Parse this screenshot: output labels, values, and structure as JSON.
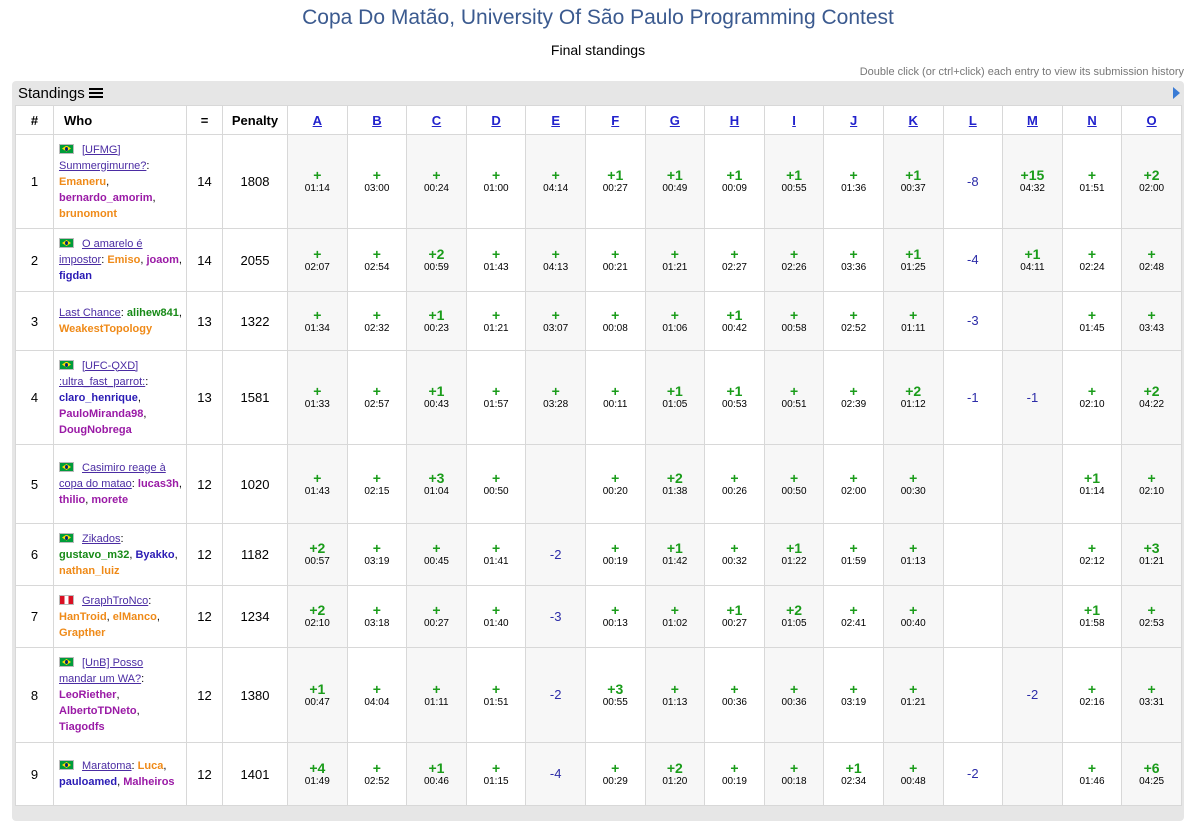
{
  "header": {
    "title": "Copa Do Matão, University Of São Paulo Programming Contest",
    "subtitle": "Final standings",
    "hint": "Double click (or ctrl+click) each entry to view its submission history"
  },
  "panel": {
    "title": "Standings"
  },
  "columns": {
    "rank": "#",
    "who": "Who",
    "solved": "=",
    "penalty": "Penalty"
  },
  "problems": [
    "A",
    "B",
    "C",
    "D",
    "E",
    "F",
    "G",
    "H",
    "I",
    "J",
    "K",
    "L",
    "M",
    "N",
    "O"
  ],
  "colors": {
    "accepted": "#1a9c1a",
    "rejected": "#2c2ca8",
    "title": "#3b5a8f",
    "team_link": "#4b2ca3"
  },
  "rows": [
    {
      "rank": "1",
      "flag": "br",
      "team": "[UFMG] Summergimurne?",
      "members": [
        {
          "name": "Emaneru",
          "color": "orange"
        },
        {
          "name": "bernardo_amorim",
          "color": "purple"
        },
        {
          "name": "brunomont",
          "color": "orange"
        }
      ],
      "solved": "14",
      "penalty": "1808",
      "cells": [
        {
          "r": "+",
          "t": "01:14"
        },
        {
          "r": "+",
          "t": "03:00"
        },
        {
          "r": "+",
          "t": "00:24"
        },
        {
          "r": "+",
          "t": "01:00"
        },
        {
          "r": "+",
          "t": "04:14"
        },
        {
          "r": "+1",
          "t": "00:27"
        },
        {
          "r": "+1",
          "t": "00:49"
        },
        {
          "r": "+1",
          "t": "00:09"
        },
        {
          "r": "+1",
          "t": "00:55"
        },
        {
          "r": "+",
          "t": "01:36"
        },
        {
          "r": "+1",
          "t": "00:37"
        },
        {
          "r": "-8",
          "t": ""
        },
        {
          "r": "+15",
          "t": "04:32"
        },
        {
          "r": "+",
          "t": "01:51"
        },
        {
          "r": "+2",
          "t": "02:00"
        }
      ]
    },
    {
      "rank": "2",
      "flag": "br",
      "team": "O amarelo é impostor",
      "members": [
        {
          "name": "Emiso",
          "color": "orange"
        },
        {
          "name": "joaom",
          "color": "purple"
        },
        {
          "name": "figdan",
          "color": "blue"
        }
      ],
      "solved": "14",
      "penalty": "2055",
      "cells": [
        {
          "r": "+",
          "t": "02:07"
        },
        {
          "r": "+",
          "t": "02:54"
        },
        {
          "r": "+2",
          "t": "00:59"
        },
        {
          "r": "+",
          "t": "01:43"
        },
        {
          "r": "+",
          "t": "04:13"
        },
        {
          "r": "+",
          "t": "00:21"
        },
        {
          "r": "+",
          "t": "01:21"
        },
        {
          "r": "+",
          "t": "02:27"
        },
        {
          "r": "+",
          "t": "02:26"
        },
        {
          "r": "+",
          "t": "03:36"
        },
        {
          "r": "+1",
          "t": "01:25"
        },
        {
          "r": "-4",
          "t": ""
        },
        {
          "r": "+1",
          "t": "04:11"
        },
        {
          "r": "+",
          "t": "02:24"
        },
        {
          "r": "+",
          "t": "02:48"
        }
      ]
    },
    {
      "rank": "3",
      "flag": "",
      "team": "Last Chance",
      "members": [
        {
          "name": "alihew841",
          "color": "green"
        },
        {
          "name": "WeakestTopology",
          "color": "orange"
        }
      ],
      "solved": "13",
      "penalty": "1322",
      "cells": [
        {
          "r": "+",
          "t": "01:34"
        },
        {
          "r": "+",
          "t": "02:32"
        },
        {
          "r": "+1",
          "t": "00:23"
        },
        {
          "r": "+",
          "t": "01:21"
        },
        {
          "r": "+",
          "t": "03:07"
        },
        {
          "r": "+",
          "t": "00:08"
        },
        {
          "r": "+",
          "t": "01:06"
        },
        {
          "r": "+1",
          "t": "00:42"
        },
        {
          "r": "+",
          "t": "00:58"
        },
        {
          "r": "+",
          "t": "02:52"
        },
        {
          "r": "+",
          "t": "01:11"
        },
        {
          "r": "-3",
          "t": ""
        },
        {
          "r": "",
          "t": ""
        },
        {
          "r": "+",
          "t": "01:45"
        },
        {
          "r": "+",
          "t": "03:43"
        }
      ]
    },
    {
      "rank": "4",
      "flag": "br",
      "team": "[UFC-QXD] :ultra_fast_parrot:",
      "members": [
        {
          "name": "claro_henrique",
          "color": "blue"
        },
        {
          "name": "PauloMiranda98",
          "color": "purple"
        },
        {
          "name": "DougNobrega",
          "color": "purple"
        }
      ],
      "solved": "13",
      "penalty": "1581",
      "cells": [
        {
          "r": "+",
          "t": "01:33"
        },
        {
          "r": "+",
          "t": "02:57"
        },
        {
          "r": "+1",
          "t": "00:43"
        },
        {
          "r": "+",
          "t": "01:57"
        },
        {
          "r": "+",
          "t": "03:28"
        },
        {
          "r": "+",
          "t": "00:11"
        },
        {
          "r": "+1",
          "t": "01:05"
        },
        {
          "r": "+1",
          "t": "00:53"
        },
        {
          "r": "+",
          "t": "00:51"
        },
        {
          "r": "+",
          "t": "02:39"
        },
        {
          "r": "+2",
          "t": "01:12"
        },
        {
          "r": "-1",
          "t": ""
        },
        {
          "r": "-1",
          "t": ""
        },
        {
          "r": "+",
          "t": "02:10"
        },
        {
          "r": "+2",
          "t": "04:22"
        }
      ]
    },
    {
      "rank": "5",
      "flag": "br",
      "team": "Casimiro reage à copa do matao",
      "members": [
        {
          "name": "lucas3h",
          "color": "purple"
        },
        {
          "name": "thilio",
          "color": "purple"
        },
        {
          "name": "morete",
          "color": "purple"
        }
      ],
      "solved": "12",
      "penalty": "1020",
      "cells": [
        {
          "r": "+",
          "t": "01:43"
        },
        {
          "r": "+",
          "t": "02:15"
        },
        {
          "r": "+3",
          "t": "01:04"
        },
        {
          "r": "+",
          "t": "00:50"
        },
        {
          "r": "",
          "t": ""
        },
        {
          "r": "+",
          "t": "00:20"
        },
        {
          "r": "+2",
          "t": "01:38"
        },
        {
          "r": "+",
          "t": "00:26"
        },
        {
          "r": "+",
          "t": "00:50"
        },
        {
          "r": "+",
          "t": "02:00"
        },
        {
          "r": "+",
          "t": "00:30"
        },
        {
          "r": "",
          "t": ""
        },
        {
          "r": "",
          "t": ""
        },
        {
          "r": "+1",
          "t": "01:14"
        },
        {
          "r": "+",
          "t": "02:10"
        }
      ]
    },
    {
      "rank": "6",
      "flag": "br",
      "team": "Zikados",
      "members": [
        {
          "name": "gustavo_m32",
          "color": "green"
        },
        {
          "name": "Byakko",
          "color": "blue"
        },
        {
          "name": "nathan_luiz",
          "color": "orange"
        }
      ],
      "solved": "12",
      "penalty": "1182",
      "cells": [
        {
          "r": "+2",
          "t": "00:57"
        },
        {
          "r": "+",
          "t": "03:19"
        },
        {
          "r": "+",
          "t": "00:45"
        },
        {
          "r": "+",
          "t": "01:41"
        },
        {
          "r": "-2",
          "t": ""
        },
        {
          "r": "+",
          "t": "00:19"
        },
        {
          "r": "+1",
          "t": "01:42"
        },
        {
          "r": "+",
          "t": "00:32"
        },
        {
          "r": "+1",
          "t": "01:22"
        },
        {
          "r": "+",
          "t": "01:59"
        },
        {
          "r": "+",
          "t": "01:13"
        },
        {
          "r": "",
          "t": ""
        },
        {
          "r": "",
          "t": ""
        },
        {
          "r": "+",
          "t": "02:12"
        },
        {
          "r": "+3",
          "t": "01:21"
        }
      ]
    },
    {
      "rank": "7",
      "flag": "pe",
      "team": "GraphTroNco",
      "members": [
        {
          "name": "HanTroid",
          "color": "orange"
        },
        {
          "name": "elManco",
          "color": "orange"
        },
        {
          "name": "Grapther",
          "color": "orange"
        }
      ],
      "solved": "12",
      "penalty": "1234",
      "cells": [
        {
          "r": "+2",
          "t": "02:10"
        },
        {
          "r": "+",
          "t": "03:18"
        },
        {
          "r": "+",
          "t": "00:27"
        },
        {
          "r": "+",
          "t": "01:40"
        },
        {
          "r": "-3",
          "t": ""
        },
        {
          "r": "+",
          "t": "00:13"
        },
        {
          "r": "+",
          "t": "01:02"
        },
        {
          "r": "+1",
          "t": "00:27"
        },
        {
          "r": "+2",
          "t": "01:05"
        },
        {
          "r": "+",
          "t": "02:41"
        },
        {
          "r": "+",
          "t": "00:40"
        },
        {
          "r": "",
          "t": ""
        },
        {
          "r": "",
          "t": ""
        },
        {
          "r": "+1",
          "t": "01:58"
        },
        {
          "r": "+",
          "t": "02:53"
        }
      ]
    },
    {
      "rank": "8",
      "flag": "br",
      "team": "[UnB] Posso mandar um WA?",
      "members": [
        {
          "name": "LeoRiether",
          "color": "purple"
        },
        {
          "name": "AlbertoTDNeto",
          "color": "purple"
        },
        {
          "name": "Tiagodfs",
          "color": "purple"
        }
      ],
      "solved": "12",
      "penalty": "1380",
      "cells": [
        {
          "r": "+1",
          "t": "00:47"
        },
        {
          "r": "+",
          "t": "04:04"
        },
        {
          "r": "+",
          "t": "01:11"
        },
        {
          "r": "+",
          "t": "01:51"
        },
        {
          "r": "-2",
          "t": ""
        },
        {
          "r": "+3",
          "t": "00:55"
        },
        {
          "r": "+",
          "t": "01:13"
        },
        {
          "r": "+",
          "t": "00:36"
        },
        {
          "r": "+",
          "t": "00:36"
        },
        {
          "r": "+",
          "t": "03:19"
        },
        {
          "r": "+",
          "t": "01:21"
        },
        {
          "r": "",
          "t": ""
        },
        {
          "r": "-2",
          "t": ""
        },
        {
          "r": "+",
          "t": "02:16"
        },
        {
          "r": "+",
          "t": "03:31"
        }
      ]
    },
    {
      "rank": "9",
      "flag": "br",
      "team": "Maratoma",
      "members": [
        {
          "name": "Luca",
          "color": "orange"
        },
        {
          "name": "pauloamed",
          "color": "blue"
        },
        {
          "name": "Malheiros",
          "color": "purple"
        }
      ],
      "solved": "12",
      "penalty": "1401",
      "cells": [
        {
          "r": "+4",
          "t": "01:49"
        },
        {
          "r": "+",
          "t": "02:52"
        },
        {
          "r": "+1",
          "t": "00:46"
        },
        {
          "r": "+",
          "t": "01:15"
        },
        {
          "r": "-4",
          "t": ""
        },
        {
          "r": "+",
          "t": "00:29"
        },
        {
          "r": "+2",
          "t": "01:20"
        },
        {
          "r": "+",
          "t": "00:19"
        },
        {
          "r": "+",
          "t": "00:18"
        },
        {
          "r": "+1",
          "t": "02:34"
        },
        {
          "r": "+",
          "t": "00:48"
        },
        {
          "r": "-2",
          "t": ""
        },
        {
          "r": "",
          "t": ""
        },
        {
          "r": "+",
          "t": "01:46"
        },
        {
          "r": "+6",
          "t": "04:25"
        }
      ]
    }
  ]
}
